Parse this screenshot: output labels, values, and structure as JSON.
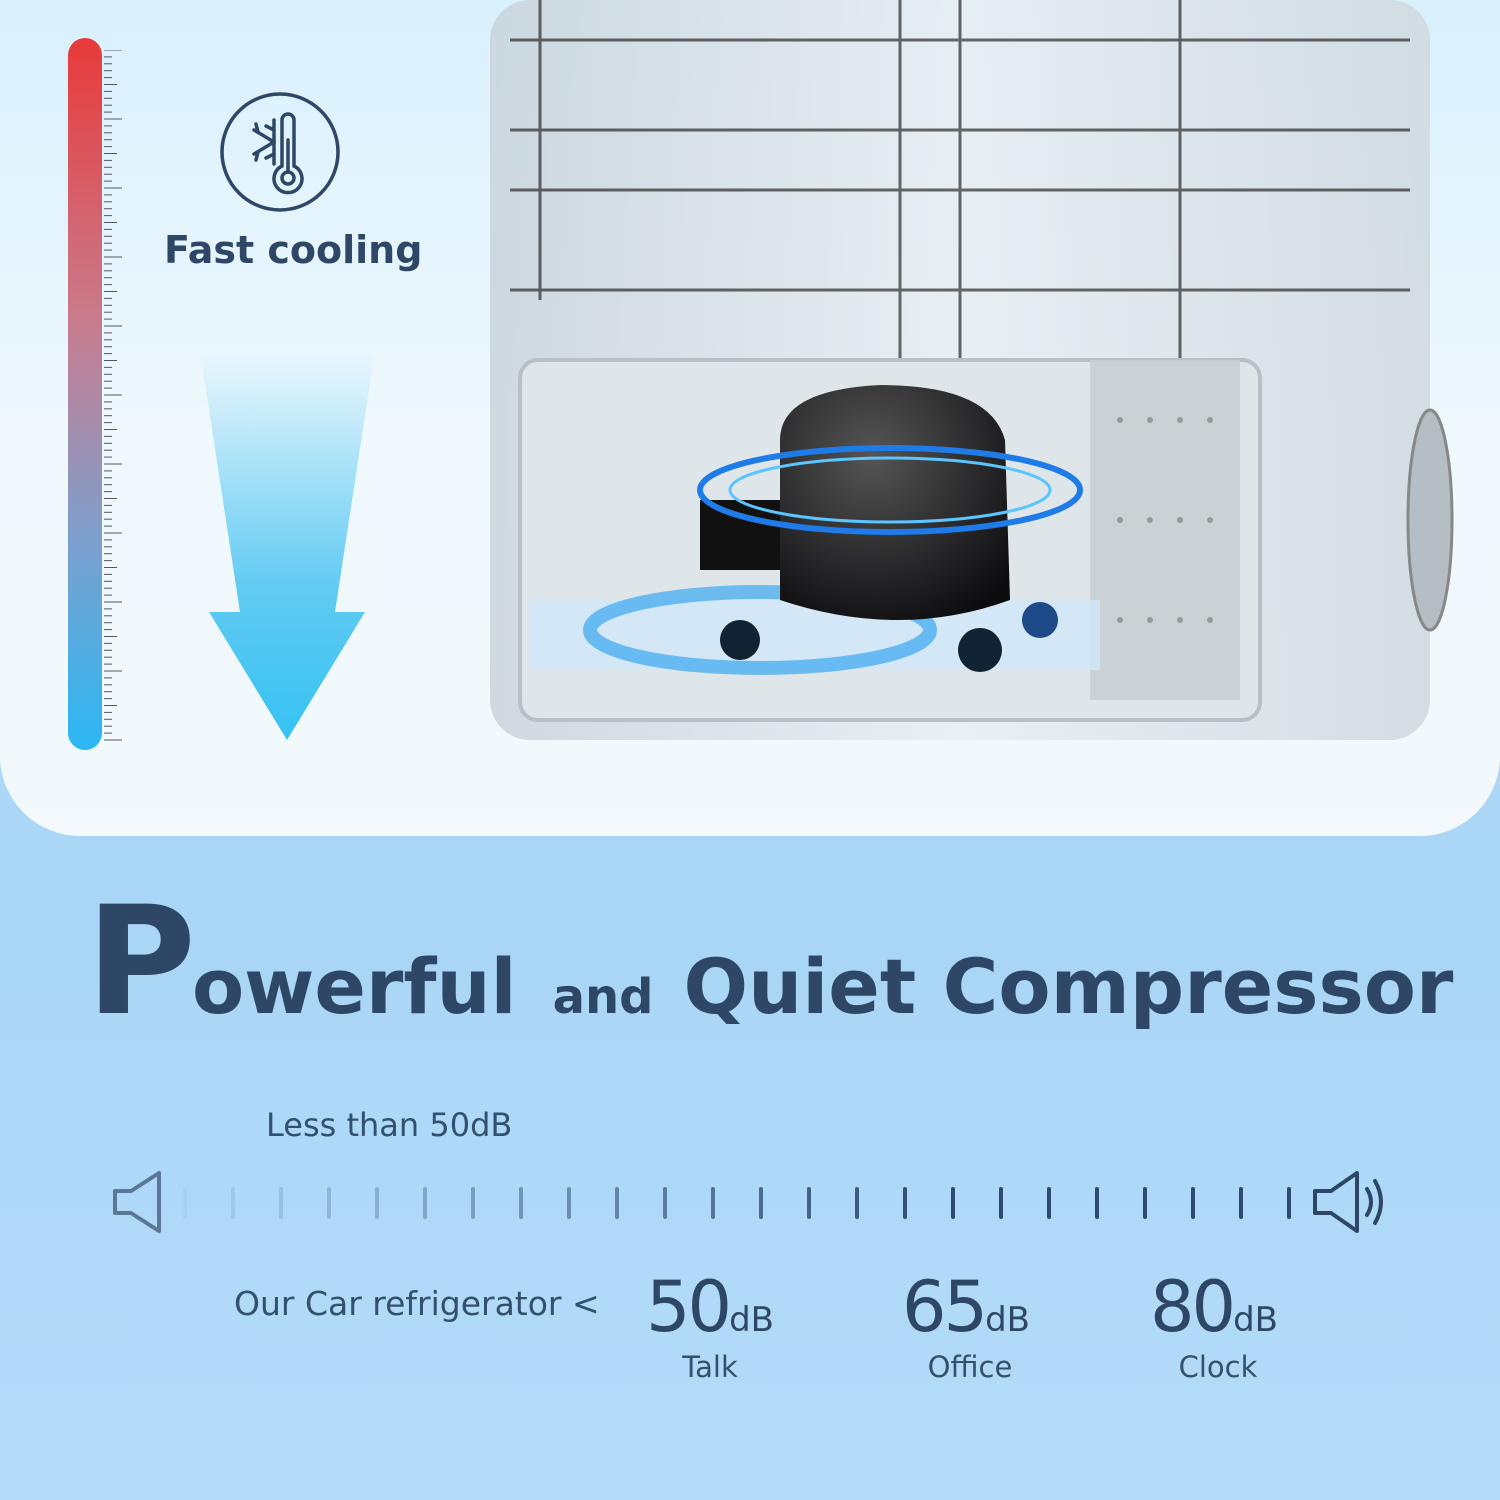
{
  "top_panel": {
    "feature_icon": "snowflake-thermometer-icon",
    "feature_label": "Fast cooling",
    "temperature_bar_colors": {
      "top": "#e83a3a",
      "bottom": "#2bb8f4"
    }
  },
  "headline": {
    "first_letter": "P",
    "word1_rest": "owerful",
    "connector": "and",
    "rest": "Quiet Compressor"
  },
  "noise": {
    "caption": "Less than 50dB",
    "quiet_icon": "speaker-low-icon",
    "loud_icon": "speaker-high-icon",
    "ours_label": "Our Car refrigerator <",
    "levels": [
      {
        "value": "50",
        "unit": "dB",
        "label": "Talk"
      },
      {
        "value": "65",
        "unit": "dB",
        "label": "Office"
      },
      {
        "value": "80",
        "unit": "dB",
        "label": "Clock"
      }
    ]
  }
}
